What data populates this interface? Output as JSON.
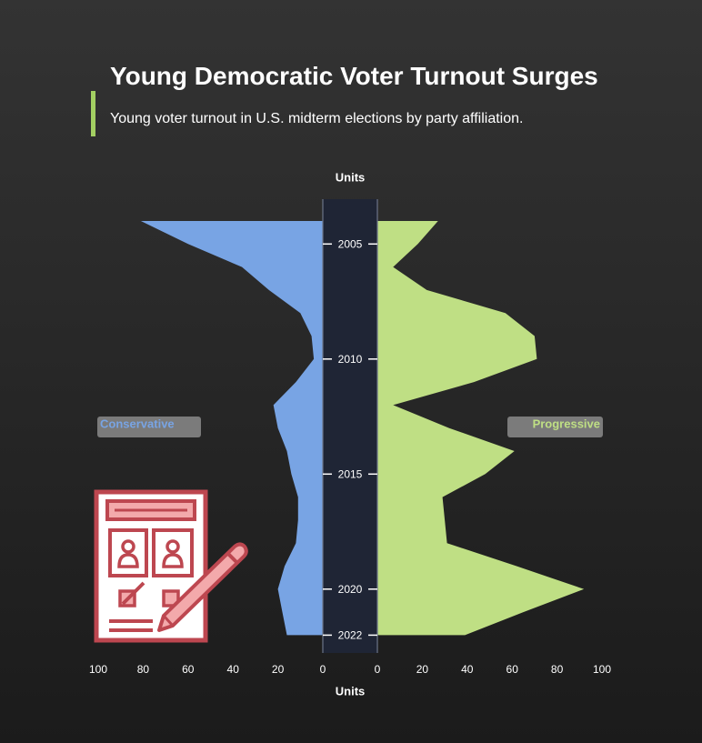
{
  "header": {
    "title": "Young Democratic Voter Turnout Surges",
    "subtitle": "Young voter turnout in U.S. midterm elections by party affiliation."
  },
  "colors": {
    "accent": "#a3cf62",
    "conservative": "#78a4e4",
    "progressive": "#bfdf84",
    "center_band": "#1f2535",
    "legend_box": "#7b7b7b",
    "icon": "#bd4750",
    "icon_light": "#f3a9ab"
  },
  "icon": "ballot-vote-icon",
  "chart_data": {
    "type": "area",
    "layout": "back-to-back",
    "y_axis_title": "Units",
    "x_axis_title": "Units",
    "x_ticks_left": [
      "100",
      "80",
      "60",
      "40",
      "20",
      "0"
    ],
    "x_ticks_right": [
      "0",
      "20",
      "40",
      "60",
      "80",
      "100"
    ],
    "xlim": [
      0,
      100
    ],
    "year_labels": [
      "2005",
      "2010",
      "2015",
      "2020",
      "2022"
    ],
    "years": [
      2004,
      2005,
      2006,
      2007,
      2008,
      2009,
      2010,
      2011,
      2012,
      2013,
      2014,
      2015,
      2016,
      2017,
      2018,
      2019,
      2020,
      2021,
      2022
    ],
    "series": [
      {
        "name": "Conservative",
        "side": "left",
        "values": [
          81,
          60,
          36,
          24,
          10,
          5,
          4,
          12,
          22,
          20,
          16,
          14,
          11,
          11,
          12,
          17,
          20,
          18,
          16
        ]
      },
      {
        "name": "Progressive",
        "side": "right",
        "values": [
          27,
          18,
          7,
          22,
          57,
          70,
          71,
          43,
          7,
          32,
          61,
          48,
          29,
          30,
          31,
          62,
          92,
          65,
          39
        ]
      }
    ]
  }
}
